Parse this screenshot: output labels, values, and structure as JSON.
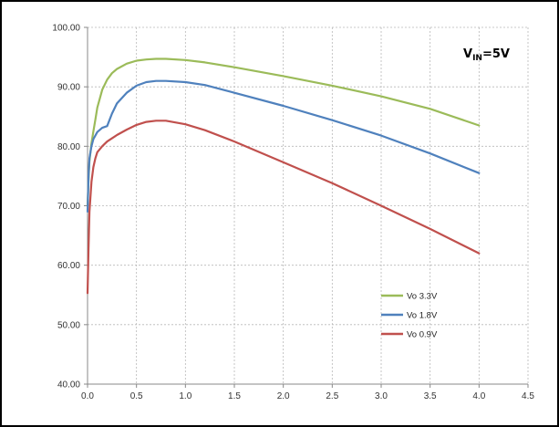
{
  "chart_data": {
    "type": "line",
    "title": "",
    "xlabel": "",
    "ylabel": "",
    "xlim": [
      0,
      4.5
    ],
    "ylim": [
      40,
      100
    ],
    "x_ticks": [
      "0.0",
      "0.5",
      "1.0",
      "1.5",
      "2.0",
      "2.5",
      "3.0",
      "3.5",
      "4.0",
      "4.5"
    ],
    "y_ticks": [
      "40.00",
      "50.00",
      "60.00",
      "70.00",
      "80.00",
      "90.00",
      "100.00"
    ],
    "grid": true,
    "legend_position": "lower-right",
    "annotation": {
      "v_text": "V",
      "sub_text": "IN",
      "value_text": "=5V"
    },
    "series": [
      {
        "name": "Vo 3.3V",
        "color": "#9bbb59",
        "points": [
          [
            0.0,
            70.0
          ],
          [
            0.01,
            74.5
          ],
          [
            0.02,
            77.5
          ],
          [
            0.04,
            80.5
          ],
          [
            0.06,
            82.5
          ],
          [
            0.08,
            84.5
          ],
          [
            0.1,
            86.5
          ],
          [
            0.15,
            89.5
          ],
          [
            0.2,
            91.2
          ],
          [
            0.25,
            92.3
          ],
          [
            0.3,
            93.0
          ],
          [
            0.4,
            93.9
          ],
          [
            0.5,
            94.4
          ],
          [
            0.6,
            94.6
          ],
          [
            0.7,
            94.7
          ],
          [
            0.8,
            94.7
          ],
          [
            1.0,
            94.5
          ],
          [
            1.2,
            94.1
          ],
          [
            1.5,
            93.3
          ],
          [
            2.0,
            91.8
          ],
          [
            2.5,
            90.2
          ],
          [
            3.0,
            88.4
          ],
          [
            3.5,
            86.3
          ],
          [
            4.0,
            83.5
          ]
        ]
      },
      {
        "name": "Vo 1.8V",
        "color": "#4f81bd",
        "points": [
          [
            0.0,
            69.0
          ],
          [
            0.01,
            75.0
          ],
          [
            0.02,
            78.0
          ],
          [
            0.04,
            80.0
          ],
          [
            0.06,
            81.2
          ],
          [
            0.1,
            82.4
          ],
          [
            0.15,
            83.1
          ],
          [
            0.2,
            83.4
          ],
          [
            0.25,
            85.5
          ],
          [
            0.3,
            87.2
          ],
          [
            0.4,
            89.0
          ],
          [
            0.5,
            90.2
          ],
          [
            0.6,
            90.8
          ],
          [
            0.7,
            91.0
          ],
          [
            0.8,
            91.0
          ],
          [
            1.0,
            90.8
          ],
          [
            1.2,
            90.3
          ],
          [
            1.5,
            89.0
          ],
          [
            2.0,
            86.8
          ],
          [
            2.5,
            84.4
          ],
          [
            3.0,
            81.8
          ],
          [
            3.5,
            78.8
          ],
          [
            4.0,
            75.5
          ]
        ]
      },
      {
        "name": "Vo 0.9V",
        "color": "#c0504d",
        "points": [
          [
            0.0,
            55.3
          ],
          [
            0.01,
            63.0
          ],
          [
            0.02,
            69.0
          ],
          [
            0.04,
            74.0
          ],
          [
            0.06,
            76.5
          ],
          [
            0.08,
            78.0
          ],
          [
            0.1,
            79.0
          ],
          [
            0.15,
            80.0
          ],
          [
            0.2,
            80.8
          ],
          [
            0.3,
            81.9
          ],
          [
            0.4,
            82.8
          ],
          [
            0.5,
            83.6
          ],
          [
            0.6,
            84.1
          ],
          [
            0.7,
            84.3
          ],
          [
            0.8,
            84.3
          ],
          [
            1.0,
            83.7
          ],
          [
            1.2,
            82.7
          ],
          [
            1.5,
            80.8
          ],
          [
            2.0,
            77.3
          ],
          [
            2.5,
            73.8
          ],
          [
            3.0,
            70.0
          ],
          [
            3.5,
            66.1
          ],
          [
            4.0,
            62.0
          ]
        ]
      }
    ]
  }
}
